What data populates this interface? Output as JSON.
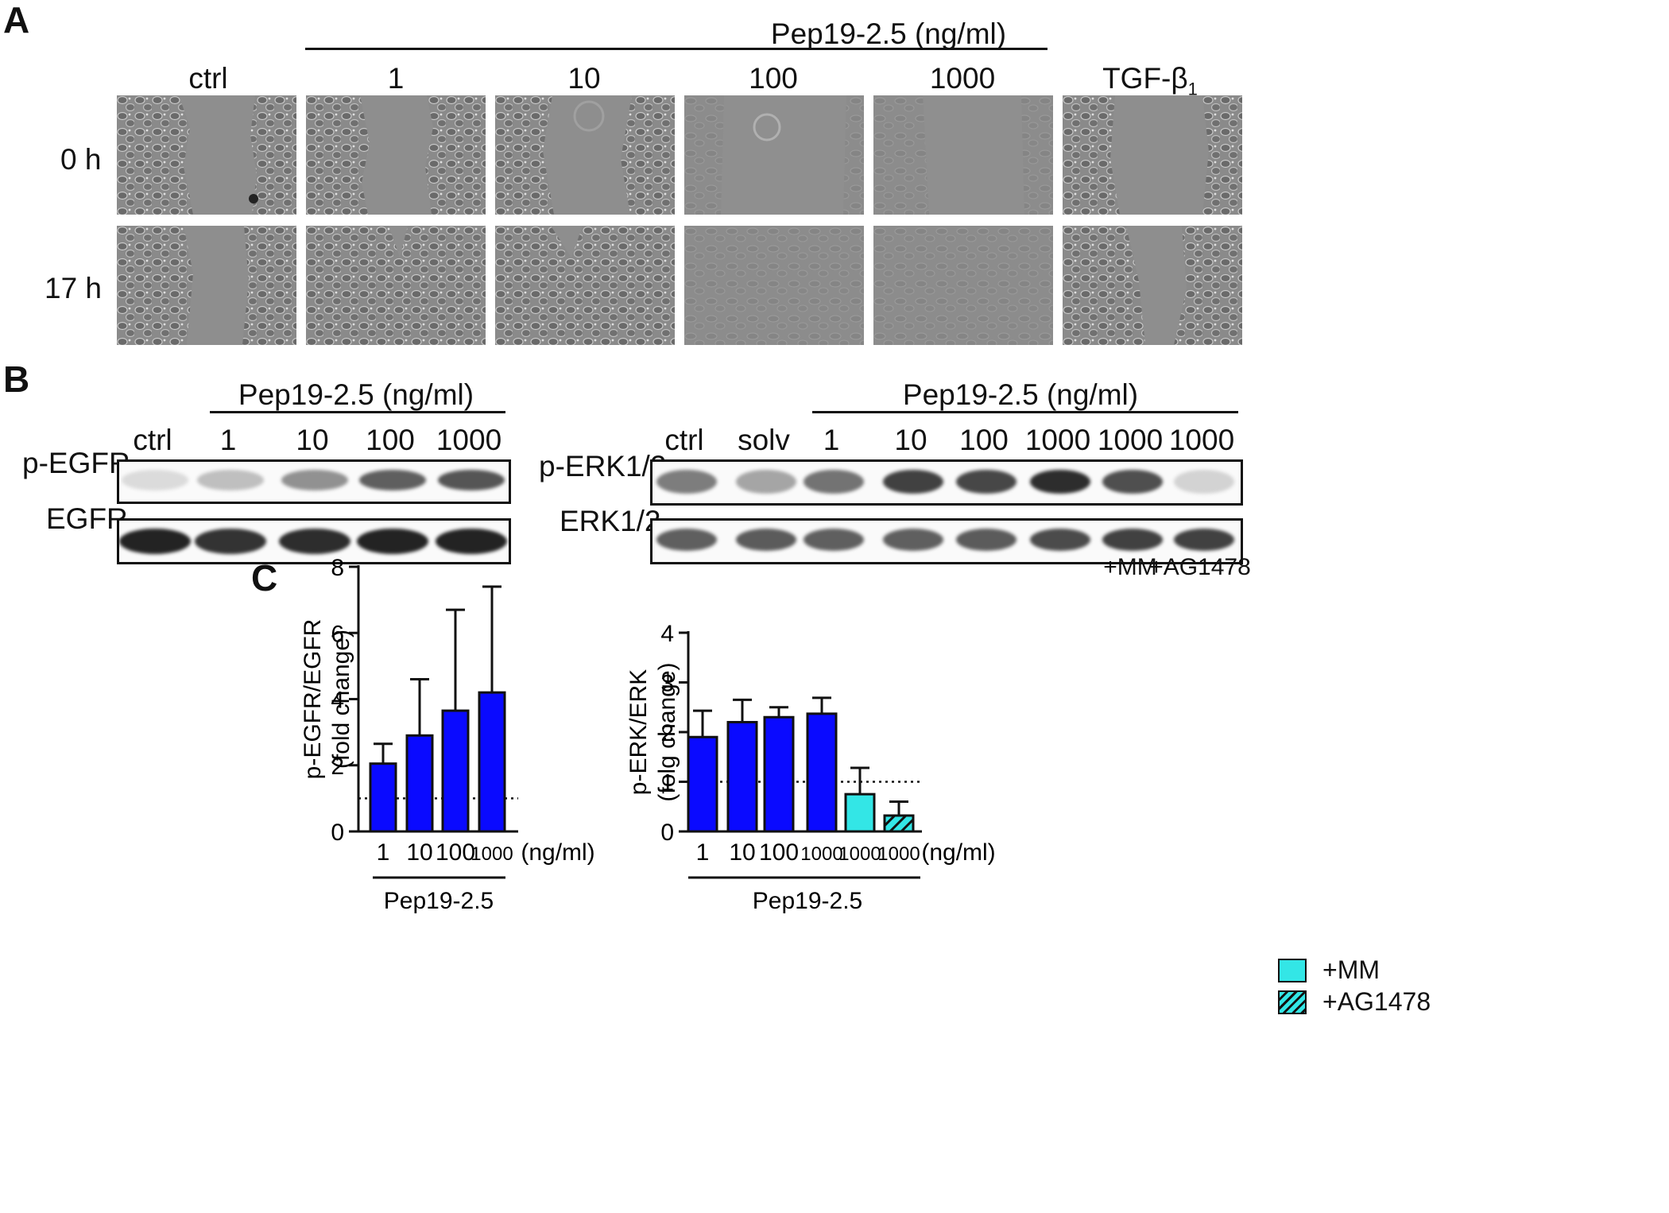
{
  "figure": {
    "panel_a": {
      "letter": "A",
      "group_label": "Pep19-2.5 (ng/ml)",
      "columns": [
        "ctrl",
        "1",
        "10",
        "100",
        "1000",
        "TGF-β",
        "1"
      ],
      "rows": [
        "0 h",
        "17 h"
      ]
    },
    "panel_b": {
      "letter": "B",
      "left": {
        "group_label": "Pep19-2.5 (ng/ml)",
        "lanes": [
          "ctrl",
          "1",
          "10",
          "100",
          "1000"
        ],
        "rows": [
          "p-EGFR",
          "EGFR"
        ],
        "intensity": {
          "p-EGFR": [
            0.08,
            0.22,
            0.45,
            0.7,
            0.75
          ],
          "EGFR": [
            1,
            0.92,
            0.95,
            1,
            1
          ]
        }
      },
      "right": {
        "group_label": "Pep19-2.5 (ng/ml)",
        "lanes": [
          "ctrl",
          "solv",
          "1",
          "10",
          "100",
          "1000",
          "1000",
          "1000"
        ],
        "rows": [
          "p-ERK1/2",
          "ERK1/2"
        ],
        "extra": [
          "+MM",
          "+AG1478"
        ],
        "intensity": {
          "p-ERK1/2": [
            0.55,
            0.35,
            0.6,
            0.85,
            0.82,
            0.95,
            0.78,
            0.12
          ],
          "ERK1/2": [
            0.7,
            0.72,
            0.7,
            0.7,
            0.72,
            0.8,
            0.85,
            0.85
          ]
        }
      }
    },
    "panel_c": {
      "letter": "C"
    },
    "legend": {
      "items": [
        "+MM",
        "+AG1478"
      ]
    }
  },
  "colors": {
    "blue": "#0a0aff",
    "cyan": "#33e6e6",
    "ink": "#111111"
  },
  "chart_data": [
    {
      "type": "bar",
      "categories": [
        "1",
        "10",
        "100",
        "1000"
      ],
      "values": [
        2.05,
        2.9,
        3.65,
        4.2
      ],
      "errors": [
        0.6,
        1.7,
        3.05,
        3.2
      ],
      "ylabel_line1": "p-EGFR/EGFR",
      "ylabel_line2": "(fold change)",
      "unit_label": "(ng/ml)",
      "group_label": "Pep19-2.5",
      "yticks": [
        "0",
        "2",
        "4",
        "6",
        "8"
      ],
      "ylim": [
        0,
        8
      ],
      "reference_line": 1,
      "colors": [
        "#0a0aff",
        "#0a0aff",
        "#0a0aff",
        "#0a0aff"
      ],
      "patterns": [
        "solid",
        "solid",
        "solid",
        "solid"
      ]
    },
    {
      "type": "bar",
      "categories": [
        "1",
        "10",
        "100",
        "1000",
        "1000",
        "1000"
      ],
      "values": [
        1.9,
        2.2,
        2.3,
        2.37,
        0.75,
        0.32
      ],
      "errors": [
        0.53,
        0.45,
        0.2,
        0.32,
        0.53,
        0.28
      ],
      "ylabel_line1": "p-ERK/ERK",
      "ylabel_line2": "(folg change)",
      "unit_label": "(ng/ml)",
      "group_label": "Pep19-2.5",
      "yticks": [
        "0",
        "1",
        "2",
        "3",
        "4"
      ],
      "ylim": [
        0,
        4
      ],
      "reference_line": 1,
      "colors": [
        "#0a0aff",
        "#0a0aff",
        "#0a0aff",
        "#0a0aff",
        "#33e6e6",
        "#33e6e6"
      ],
      "patterns": [
        "solid",
        "solid",
        "solid",
        "solid",
        "solid",
        "hatch"
      ]
    }
  ]
}
